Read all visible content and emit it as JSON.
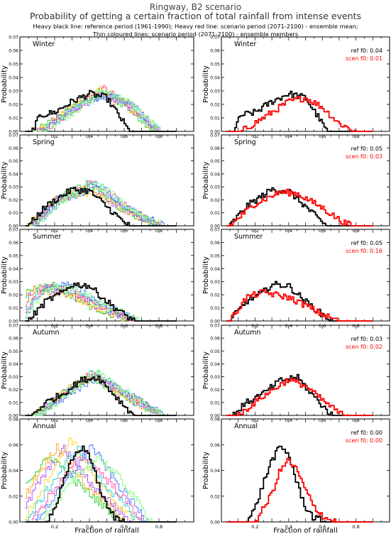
{
  "header": {
    "title": "Ringway, B2 scenario",
    "subtitle": "Probability of getting a certain fraction of total rainfall from intense events",
    "legend_line_1": "Heavy black line: reference period (1961-1990); Heavy red line: scenario period (2071-2100) - ensemble mean;",
    "legend_line_2": "Thin coloured lines: scenario period (2071-2100) - ensemble members"
  },
  "colors": {
    "reference": "#000000",
    "scenario_mean": "#ff0000",
    "members": [
      "#00cc00",
      "#ff9900",
      "#9933ff",
      "#ffcc00",
      "#00cccc",
      "#ff3399",
      "#3366ff",
      "#66ff66"
    ]
  },
  "chart_data": [
    {
      "type": "line",
      "panel": "Winter",
      "column": "ensemble members",
      "ylabel": "Probability",
      "xlim": [
        0,
        1
      ],
      "ylim": [
        0,
        0.07
      ],
      "xticks": [
        "0.2",
        "0.4",
        "0.6",
        "0.8"
      ],
      "yticks": [
        "0.00",
        "0.01",
        "0.02",
        "0.03",
        "0.04",
        "0.05",
        "0.06",
        "0.07"
      ],
      "series": [
        {
          "role": "reference",
          "x": [
            0.07,
            0.12,
            0.2,
            0.3,
            0.4,
            0.5,
            0.58,
            0.63
          ],
          "y": [
            0,
            0.012,
            0.014,
            0.022,
            0.028,
            0.025,
            0.01,
            0
          ]
        },
        {
          "role": "members",
          "x": [
            0.1,
            0.3,
            0.45,
            0.6,
            0.78
          ],
          "y": [
            0,
            0.018,
            0.028,
            0.02,
            0
          ],
          "peak": [
            0.45,
            0.5
          ]
        }
      ]
    },
    {
      "type": "line",
      "panel": "Winter",
      "column": "ensemble mean",
      "ylabel": "Probability",
      "xlim": [
        0,
        1
      ],
      "ylim": [
        0,
        0.07
      ],
      "xticks": [
        "0.2",
        "0.4",
        "0.6",
        "0.8"
      ],
      "yticks": [
        "0.00",
        "0.01",
        "0.02",
        "0.03",
        "0.04",
        "0.05",
        "0.06",
        "0.07"
      ],
      "annotations": {
        "ref": "ref  f0: 0.04",
        "scen": "scen f0: 0.01"
      },
      "series": [
        {
          "role": "reference",
          "x": [
            0.07,
            0.12,
            0.2,
            0.3,
            0.4,
            0.5,
            0.58,
            0.63
          ],
          "y": [
            0,
            0.012,
            0.014,
            0.022,
            0.028,
            0.025,
            0.01,
            0
          ]
        },
        {
          "role": "scenario_mean",
          "x": [
            0.12,
            0.25,
            0.4,
            0.5,
            0.6,
            0.7,
            0.8
          ],
          "y": [
            0,
            0.01,
            0.022,
            0.025,
            0.018,
            0.006,
            0
          ]
        }
      ]
    },
    {
      "type": "line",
      "panel": "Spring",
      "column": "ensemble members",
      "ylabel": "Probability",
      "xlim": [
        0,
        1
      ],
      "ylim": [
        0,
        0.07
      ],
      "xticks": [
        "0.2",
        "0.4",
        "0.6",
        "0.8"
      ],
      "yticks": [
        "0.00",
        "0.01",
        "0.02",
        "0.03",
        "0.04",
        "0.05",
        "0.06",
        "0.07"
      ],
      "series": [
        {
          "role": "reference",
          "x": [
            0.05,
            0.15,
            0.3,
            0.4,
            0.5,
            0.58,
            0.63
          ],
          "y": [
            0,
            0.015,
            0.028,
            0.027,
            0.015,
            0.005,
            0
          ]
        },
        {
          "role": "members",
          "x": [
            0.05,
            0.2,
            0.4,
            0.6,
            0.8
          ],
          "y": [
            0,
            0.02,
            0.03,
            0.012,
            0
          ],
          "peak": [
            0.4,
            0.45
          ]
        }
      ]
    },
    {
      "type": "line",
      "panel": "Spring",
      "column": "ensemble mean",
      "ylabel": "Probability",
      "xlim": [
        0,
        1
      ],
      "ylim": [
        0,
        0.07
      ],
      "xticks": [
        "0.2",
        "0.4",
        "0.6",
        "0.8"
      ],
      "yticks": [
        "0.00",
        "0.01",
        "0.02",
        "0.03",
        "0.04",
        "0.05",
        "0.06",
        "0.07"
      ],
      "annotations": {
        "ref": "ref  f0: 0.05",
        "scen": "scen f0: 0.03"
      },
      "series": [
        {
          "role": "reference",
          "x": [
            0.05,
            0.15,
            0.3,
            0.4,
            0.5,
            0.58,
            0.63
          ],
          "y": [
            0,
            0.015,
            0.028,
            0.027,
            0.015,
            0.005,
            0
          ]
        },
        {
          "role": "scenario_mean",
          "x": [
            0.05,
            0.2,
            0.35,
            0.45,
            0.6,
            0.72,
            0.78
          ],
          "y": [
            0,
            0.017,
            0.026,
            0.025,
            0.014,
            0.003,
            0
          ]
        }
      ]
    },
    {
      "type": "line",
      "panel": "Summer",
      "column": "ensemble members",
      "ylabel": "Probability",
      "xlim": [
        0,
        1
      ],
      "ylim": [
        0,
        0.07
      ],
      "xticks": [
        "0.2",
        "0.4",
        "0.6",
        "0.8"
      ],
      "yticks": [
        "0.00",
        "0.01",
        "0.02",
        "0.03",
        "0.04",
        "0.05",
        "0.06",
        "0.07"
      ],
      "series": [
        {
          "role": "reference",
          "x": [
            0.05,
            0.15,
            0.25,
            0.3,
            0.4,
            0.5,
            0.6,
            0.66
          ],
          "y": [
            0,
            0.015,
            0.022,
            0.028,
            0.027,
            0.015,
            0.005,
            0
          ]
        },
        {
          "role": "members",
          "x": [
            0.05,
            0.2,
            0.35,
            0.55,
            0.72
          ],
          "y": [
            0,
            0.024,
            0.025,
            0.012,
            0
          ],
          "peak": [
            0.2,
            0.3
          ]
        }
      ]
    },
    {
      "type": "line",
      "panel": "Summer",
      "column": "ensemble mean",
      "ylabel": "Probability",
      "xlim": [
        0,
        1
      ],
      "ylim": [
        0,
        0.07
      ],
      "xticks": [
        "0.2",
        "0.4",
        "0.6",
        "0.8"
      ],
      "yticks": [
        "0.00",
        "0.01",
        "0.02",
        "0.03",
        "0.04",
        "0.05",
        "0.06",
        "0.07"
      ],
      "annotations": {
        "ref": "ref  f0: 0.05",
        "scen": "scen f0: 0.16"
      },
      "series": [
        {
          "role": "reference",
          "x": [
            0.05,
            0.15,
            0.25,
            0.3,
            0.4,
            0.5,
            0.6,
            0.66
          ],
          "y": [
            0,
            0.015,
            0.022,
            0.028,
            0.027,
            0.015,
            0.005,
            0
          ]
        },
        {
          "role": "scenario_mean",
          "x": [
            0.05,
            0.15,
            0.25,
            0.4,
            0.5,
            0.6,
            0.7
          ],
          "y": [
            0,
            0.018,
            0.022,
            0.018,
            0.012,
            0.005,
            0
          ]
        }
      ]
    },
    {
      "type": "line",
      "panel": "Autumn",
      "column": "ensemble members",
      "ylabel": "Probability",
      "xlim": [
        0,
        1
      ],
      "ylim": [
        0,
        0.07
      ],
      "xticks": [
        "0.2",
        "0.4",
        "0.6",
        "0.8"
      ],
      "yticks": [
        "0.00",
        "0.01",
        "0.02",
        "0.03",
        "0.04",
        "0.05",
        "0.06",
        "0.07"
      ],
      "series": [
        {
          "role": "reference",
          "x": [
            0.07,
            0.15,
            0.25,
            0.35,
            0.45,
            0.55,
            0.62,
            0.66
          ],
          "y": [
            0,
            0.01,
            0.017,
            0.027,
            0.03,
            0.015,
            0.005,
            0
          ]
        },
        {
          "role": "members",
          "x": [
            0.08,
            0.25,
            0.4,
            0.6,
            0.8
          ],
          "y": [
            0,
            0.018,
            0.03,
            0.015,
            0
          ],
          "peak": [
            0.4,
            0.45
          ]
        }
      ]
    },
    {
      "type": "line",
      "panel": "Autumn",
      "column": "ensemble mean",
      "ylabel": "Probability",
      "xlim": [
        0,
        1
      ],
      "ylim": [
        0,
        0.07
      ],
      "xticks": [
        "0.2",
        "0.4",
        "0.6",
        "0.8"
      ],
      "yticks": [
        "0.00",
        "0.01",
        "0.02",
        "0.03",
        "0.04",
        "0.05",
        "0.06",
        "0.07"
      ],
      "annotations": {
        "ref": "ref  f0: 0.03",
        "scen": "scen f0: 0.02"
      },
      "series": [
        {
          "role": "reference",
          "x": [
            0.07,
            0.15,
            0.25,
            0.35,
            0.45,
            0.55,
            0.62,
            0.66
          ],
          "y": [
            0,
            0.01,
            0.017,
            0.027,
            0.03,
            0.015,
            0.005,
            0
          ]
        },
        {
          "role": "scenario_mean",
          "x": [
            0.1,
            0.25,
            0.4,
            0.5,
            0.6,
            0.7,
            0.73
          ],
          "y": [
            0,
            0.015,
            0.028,
            0.023,
            0.012,
            0.002,
            0
          ]
        }
      ]
    },
    {
      "type": "line",
      "panel": "Annual",
      "column": "ensemble members",
      "ylabel": "Probability",
      "xlabel": "Fraction of rainfall",
      "xlim": [
        0,
        1
      ],
      "ylim": [
        0,
        0.08
      ],
      "xticks": [
        "0.2",
        "0.4",
        "0.6",
        "0.8"
      ],
      "yticks": [
        "0.00",
        "0.02",
        "0.04",
        "0.06",
        "0.08"
      ],
      "series": [
        {
          "role": "reference",
          "x": [
            0.15,
            0.2,
            0.25,
            0.3,
            0.35,
            0.4,
            0.45,
            0.5,
            0.55,
            0.62
          ],
          "y": [
            0,
            0.01,
            0.03,
            0.048,
            0.058,
            0.053,
            0.03,
            0.012,
            0.003,
            0
          ]
        },
        {
          "role": "members",
          "x": [
            0.05,
            0.2,
            0.35,
            0.5,
            0.7
          ],
          "y": [
            0,
            0.03,
            0.06,
            0.03,
            0
          ],
          "peak": [
            0.18,
            0.45
          ]
        }
      ]
    },
    {
      "type": "line",
      "panel": "Annual",
      "column": "ensemble mean",
      "ylabel": "Probability",
      "xlabel": "Fraction of rainfall",
      "xlim": [
        0,
        1
      ],
      "ylim": [
        0,
        0.08
      ],
      "xticks": [
        "0.2",
        "0.4",
        "0.6",
        "0.8"
      ],
      "yticks": [
        "0.00",
        "0.02",
        "0.04",
        "0.06",
        "0.08"
      ],
      "annotations": {
        "ref": "ref  f0: 0.00",
        "scen": "scen f0: 0.00"
      },
      "series": [
        {
          "role": "reference",
          "x": [
            0.15,
            0.2,
            0.25,
            0.3,
            0.35,
            0.4,
            0.45,
            0.5,
            0.55,
            0.62
          ],
          "y": [
            0,
            0.01,
            0.03,
            0.048,
            0.058,
            0.053,
            0.03,
            0.012,
            0.003,
            0
          ]
        },
        {
          "role": "scenario_mean",
          "x": [
            0.2,
            0.25,
            0.3,
            0.35,
            0.4,
            0.45,
            0.5,
            0.55,
            0.62,
            0.68
          ],
          "y": [
            0,
            0.01,
            0.022,
            0.04,
            0.048,
            0.04,
            0.025,
            0.012,
            0.003,
            0
          ]
        }
      ]
    }
  ]
}
